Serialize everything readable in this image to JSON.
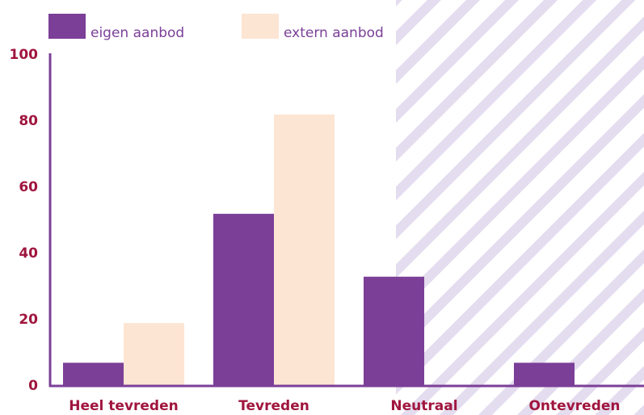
{
  "chart_data": {
    "type": "bar",
    "categories": [
      "Heel tevreden",
      "Tevreden",
      "Neutraal",
      "Ontevreden"
    ],
    "series": [
      {
        "name": "eigen aanbod",
        "color": "#7b3f98",
        "values": [
          7,
          52,
          33,
          7
        ]
      },
      {
        "name": "extern aanbod",
        "color": "#fde5d3",
        "values": [
          19,
          82,
          0,
          0
        ]
      }
    ],
    "ylim": [
      0,
      100
    ],
    "yticks": [
      0,
      20,
      40,
      60,
      80,
      100
    ],
    "grid": false
  }
}
